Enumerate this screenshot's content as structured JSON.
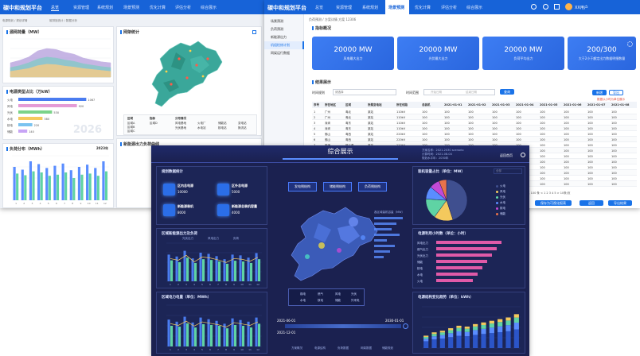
{
  "win1": {
    "brand": "碳中和规划平台",
    "nav": [
      "总览",
      "资源管理",
      "系统规划",
      "场景预测",
      "优化计算",
      "评估分析",
      "综合展示"
    ],
    "crumbs": [
      "电源规划 / 规划详情",
      "碳排放统计 / 数据分析"
    ],
    "p1_title": "源网荷量（MW）",
    "p2_title": "电源类型占比（万kW）",
    "p3_title": "负荷分布（MWh）",
    "p3_year": "2023年",
    "p4_title": "网架统计",
    "p5_title": "新能源出力负荷曲线",
    "watermark": "2026",
    "hbars": [
      {
        "label": "火电",
        "value": 1067
      },
      {
        "label": "风电",
        "value": 920
      },
      {
        "label": "光伏",
        "value": 530
      },
      {
        "label": "水电",
        "value": 380
      },
      {
        "label": "核电",
        "value": 220
      },
      {
        "label": "储能",
        "value": 140
      }
    ],
    "map_legend_head": [
      "区域",
      "指标",
      "分布情况"
    ],
    "map_legend": [
      "区域A",
      "区域B",
      "区域C",
      "区域D"
    ],
    "map_legend_items": [
      "风电基地",
      "光伏基地",
      "火电厂",
      "水电站",
      "储能站",
      "核电站",
      "变电站",
      "换流站"
    ]
  },
  "win2": {
    "brand": "碳中和规划平台",
    "nav": [
      "总览",
      "资源管理",
      "系统规划",
      "场景预测",
      "优化计算",
      "评估分析",
      "综合展示"
    ],
    "user": "XX用户",
    "breadcrumb": "负荷预测 / 方案详情  方案 12306",
    "side": [
      "场景预测",
      "负荷预测",
      "新能源出力",
      "机组检修计划",
      "网架运行数据"
    ],
    "sec1": "指标概况",
    "cards": [
      {
        "value": "20000 MW",
        "label": "风电最大出力"
      },
      {
        "value": "20000 MW",
        "label": "光伏最大出力"
      },
      {
        "value": "20000 MW",
        "label": "负荷平均出力"
      },
      {
        "value": "200/300",
        "label": "大于2小于额定出力数据明细数量"
      }
    ],
    "sec2": "结果展示",
    "filter_label": "时间规则",
    "filter_placeholder": "请选择",
    "date_label": "时间范围",
    "date_from": "开始日期",
    "date_to": "结束日期",
    "query": "查询",
    "btn_add": "新增",
    "btn_export": "导出",
    "note": "数据以小时为单位展示",
    "cols": [
      "序号",
      "所在地区",
      "区域",
      "所属变电站",
      "所在线路",
      "总装机",
      "2021-01-01",
      "2021-01-02",
      "2021-01-03",
      "2021-01-04",
      "2021-01-05",
      "2021-01-06",
      "2021-01-07",
      "2021-01-08"
    ],
    "rows": [
      [
        "1",
        "广州",
        "粤北",
        "某站",
        "110kV",
        "100",
        "100",
        "100",
        "100",
        "100",
        "100",
        "100",
        "100",
        "100"
      ],
      [
        "2",
        "广州",
        "粤北",
        "某站",
        "110kV",
        "100",
        "100",
        "100",
        "100",
        "100",
        "100",
        "100",
        "100",
        "100"
      ],
      [
        "3",
        "深圳",
        "粤东",
        "某站",
        "110kV",
        "100",
        "100",
        "100",
        "100",
        "100",
        "100",
        "100",
        "100",
        "100"
      ],
      [
        "4",
        "深圳",
        "粤东",
        "某站",
        "110kV",
        "100",
        "100",
        "100",
        "100",
        "100",
        "100",
        "100",
        "100",
        "100"
      ],
      [
        "5",
        "佛山",
        "粤西",
        "某站",
        "220kV",
        "100",
        "100",
        "100",
        "100",
        "100",
        "100",
        "100",
        "100",
        "100"
      ],
      [
        "6",
        "佛山",
        "粤西",
        "某站",
        "220kV",
        "100",
        "100",
        "100",
        "100",
        "100",
        "100",
        "100",
        "100",
        "100"
      ],
      [
        "7",
        "珠海",
        "珠三角",
        "某站",
        "220kV",
        "100",
        "100",
        "100",
        "100",
        "100",
        "100",
        "100",
        "100",
        "100"
      ],
      [
        "8",
        "珠海",
        "珠三角",
        "某站",
        "220kV",
        "100",
        "100",
        "100",
        "100",
        "100",
        "100",
        "100",
        "100",
        "100"
      ],
      [
        "9",
        "东莞",
        "珠三角",
        "某站",
        "500kV",
        "100",
        "100",
        "100",
        "100",
        "100",
        "100",
        "100",
        "100",
        "100"
      ],
      [
        "10",
        "东莞",
        "珠三角",
        "某站",
        "500kV",
        "100",
        "100",
        "100",
        "100",
        "100",
        "100",
        "100",
        "100",
        "100"
      ],
      [
        "11",
        "惠州",
        "粤东",
        "某站",
        "500kV",
        "100",
        "100",
        "100",
        "100",
        "100",
        "100",
        "100",
        "100",
        "100"
      ],
      [
        "12",
        "惠州",
        "粤东",
        "某站",
        "500kV",
        "100",
        "100",
        "100",
        "100",
        "100",
        "100",
        "100",
        "100",
        "100"
      ],
      [
        "13",
        "江门",
        "粤西",
        "某站",
        "110kV",
        "100",
        "100",
        "100",
        "100",
        "100",
        "100",
        "100",
        "100",
        "100"
      ],
      [
        "14",
        "江门",
        "粤西",
        "某站",
        "110kV",
        "100",
        "100",
        "100",
        "100",
        "100",
        "100",
        "100",
        "100",
        "100"
      ]
    ],
    "pagination": "共 100 条  < 1 2 3 4 5 >  10条/页",
    "footer_buttons": [
      "保存为可视化报表",
      "返回",
      "导出结果"
    ]
  },
  "win3": {
    "title": "综合展示",
    "info": [
      "方案名称：2021-2030 scenario",
      "计算时间：2021-08-04",
      "规划水平年：2030年"
    ],
    "back": "返回首页",
    "year_select": "全部",
    "p1": "规划数据统计",
    "kpis": [
      {
        "t": "区内总电源",
        "n": "10000"
      },
      {
        "t": "区外总电源",
        "n": "5000"
      },
      {
        "t": "新能源装机",
        "n": "8000"
      },
      {
        "t": "新能源总装机容量",
        "n": "4000"
      }
    ],
    "p2": "区域新能源出力及负荷",
    "p2_legend": [
      "光伏出力",
      "风电出力",
      "负荷"
    ],
    "p3": "区域电力电量（单位：MWh）",
    "map_buttons": [
      "发电侧结构",
      "储能侧结构",
      "负荷侧结构"
    ],
    "map_chart_title": "各区域装机容量（MW）",
    "map_legend": [
      "煤电",
      "燃气",
      "风电",
      "光伏",
      "水电",
      "核电",
      "储能",
      "外来电"
    ],
    "timeline_from": "2021-06-01",
    "timeline_to": "2030-01-01",
    "timeline_cur": "2021-12-01",
    "bottom_tabs": [
      "方案概况",
      "电源结构",
      "负荷数据",
      "网架数据",
      "储能规划"
    ],
    "r1": "装机容量占比（单位：MW）",
    "r2": "电源利用小时数（单位：小时）",
    "r3": "电源结构变化趋势（单位：kWh）",
    "pie_legend": [
      "火电",
      "风电",
      "光伏",
      "水电",
      "核电",
      "储能"
    ],
    "hbar_labels": [
      "风电出力",
      "燃气出力",
      "光伏出力",
      "储能",
      "核电",
      "水电",
      "火电"
    ]
  },
  "chart_data": [
    {
      "type": "area",
      "title": "源网荷量（MW）",
      "categories": [
        "1",
        "2",
        "3",
        "4",
        "5",
        "6",
        "7",
        "8",
        "9",
        "10",
        "11",
        "12"
      ],
      "series": [
        {
          "values": [
            30,
            35,
            42,
            55,
            60,
            58,
            52,
            48,
            40,
            36,
            32,
            30
          ]
        },
        {
          "values": [
            20,
            24,
            30,
            38,
            42,
            40,
            36,
            33,
            28,
            25,
            22,
            20
          ]
        },
        {
          "values": [
            12,
            15,
            18,
            24,
            27,
            26,
            23,
            21,
            18,
            16,
            14,
            12
          ]
        }
      ],
      "ylim": [
        0,
        80
      ]
    },
    {
      "type": "bar",
      "title": "负荷分布（MWh）",
      "categories": [
        "1",
        "2",
        "3",
        "4",
        "5",
        "6",
        "7",
        "8",
        "9",
        "10",
        "11",
        "12"
      ],
      "series": [
        {
          "values": [
            60,
            55,
            70,
            65,
            58,
            62,
            66,
            54,
            60,
            64,
            58,
            70
          ]
        },
        {
          "values": [
            48,
            45,
            52,
            50,
            44,
            46,
            50,
            40,
            46,
            48,
            44,
            52
          ]
        }
      ],
      "ylim": [
        0,
        80
      ]
    },
    {
      "type": "bar",
      "title": "区域新能源出力及负荷",
      "categories": [
        "1",
        "2",
        "3",
        "4",
        "5",
        "6",
        "7",
        "8",
        "9",
        "10",
        "11",
        "12"
      ],
      "series": [
        {
          "name": "光伏出力",
          "values": [
            70,
            65,
            80,
            60,
            75,
            72,
            66,
            58,
            70,
            68,
            62,
            74
          ]
        },
        {
          "name": "风电出力",
          "values": [
            55,
            50,
            62,
            48,
            58,
            56,
            52,
            46,
            54,
            52,
            48,
            58
          ]
        }
      ],
      "ylim": [
        0,
        100
      ]
    },
    {
      "type": "bar",
      "title": "区域电力电量（单位：MWh）",
      "categories": [
        "1",
        "2",
        "3",
        "4",
        "5",
        "6",
        "7",
        "8",
        "9",
        "10",
        "11",
        "12"
      ],
      "series": [
        {
          "values": [
            65,
            60,
            72,
            58,
            70,
            66,
            62,
            55,
            68,
            64,
            60,
            70
          ]
        },
        {
          "values": [
            50,
            48,
            56,
            46,
            54,
            52,
            50,
            44,
            52,
            50,
            46,
            55
          ]
        }
      ],
      "ylim": [
        0,
        100
      ]
    },
    {
      "type": "pie",
      "title": "装机容量占比（单位：MW）",
      "categories": [
        "火电",
        "风电",
        "光伏",
        "水电",
        "核电",
        "储能"
      ],
      "values": [
        45,
        15,
        16,
        10,
        8,
        6
      ]
    },
    {
      "type": "bar",
      "title": "电源利用小时数（单位：小时）",
      "categories": [
        "风电出力",
        "燃气出力",
        "光伏出力",
        "储能",
        "核电",
        "水电",
        "火电"
      ],
      "values": [
        82,
        76,
        70,
        64,
        58,
        52,
        46
      ],
      "ylim": [
        0,
        100
      ]
    },
    {
      "type": "bar",
      "title": "电源结构变化趋势（单位：kWh）",
      "categories": [
        "1",
        "2",
        "3",
        "4",
        "5",
        "6",
        "7",
        "8",
        "9",
        "10",
        "11",
        "12"
      ],
      "values": [
        30,
        38,
        42,
        48,
        54,
        52,
        58,
        62,
        66,
        70,
        74,
        82
      ],
      "ylim": [
        0,
        100
      ]
    }
  ]
}
